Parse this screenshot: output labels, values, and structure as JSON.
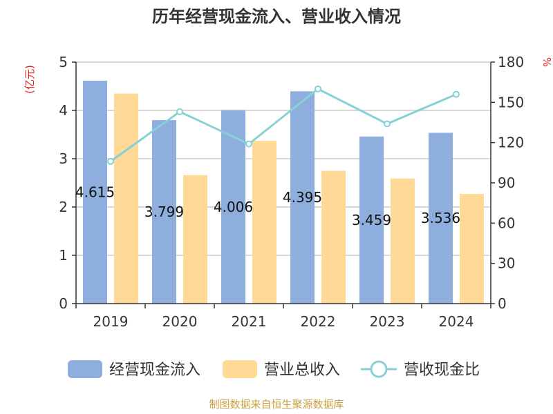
{
  "chart_data": {
    "type": "bar",
    "title": "历年经营现金流入、营业收入情况",
    "categories": [
      "2019",
      "2020",
      "2021",
      "2022",
      "2023",
      "2024"
    ],
    "series": [
      {
        "name": "经营现金流入",
        "type": "bar",
        "axis": "left",
        "color": "#8eaedd",
        "values": [
          4.615,
          3.799,
          4.006,
          4.395,
          3.459,
          3.536
        ],
        "labels": [
          "4.615",
          "3.799",
          "4.006",
          "4.395",
          "3.459",
          "3.536"
        ]
      },
      {
        "name": "营业总收入",
        "type": "bar",
        "axis": "left",
        "color": "#ffd996",
        "values": [
          4.35,
          2.66,
          3.37,
          2.75,
          2.59,
          2.27
        ]
      },
      {
        "name": "营收现金比",
        "type": "line",
        "axis": "right",
        "color": "#86d0d6",
        "values": [
          106,
          143,
          119,
          160,
          134,
          156
        ]
      }
    ],
    "y_left": {
      "label": "(亿元)",
      "min": 0,
      "max": 5,
      "ticks": [
        "0",
        "1",
        "2",
        "3",
        "4",
        "5"
      ]
    },
    "y_right": {
      "label": "%",
      "min": 0,
      "max": 180,
      "ticks": [
        "0",
        "30",
        "60",
        "90",
        "120",
        "150",
        "180"
      ]
    },
    "grid": true,
    "legend_position": "bottom"
  },
  "source": "制图数据来自恒生聚源数据库"
}
